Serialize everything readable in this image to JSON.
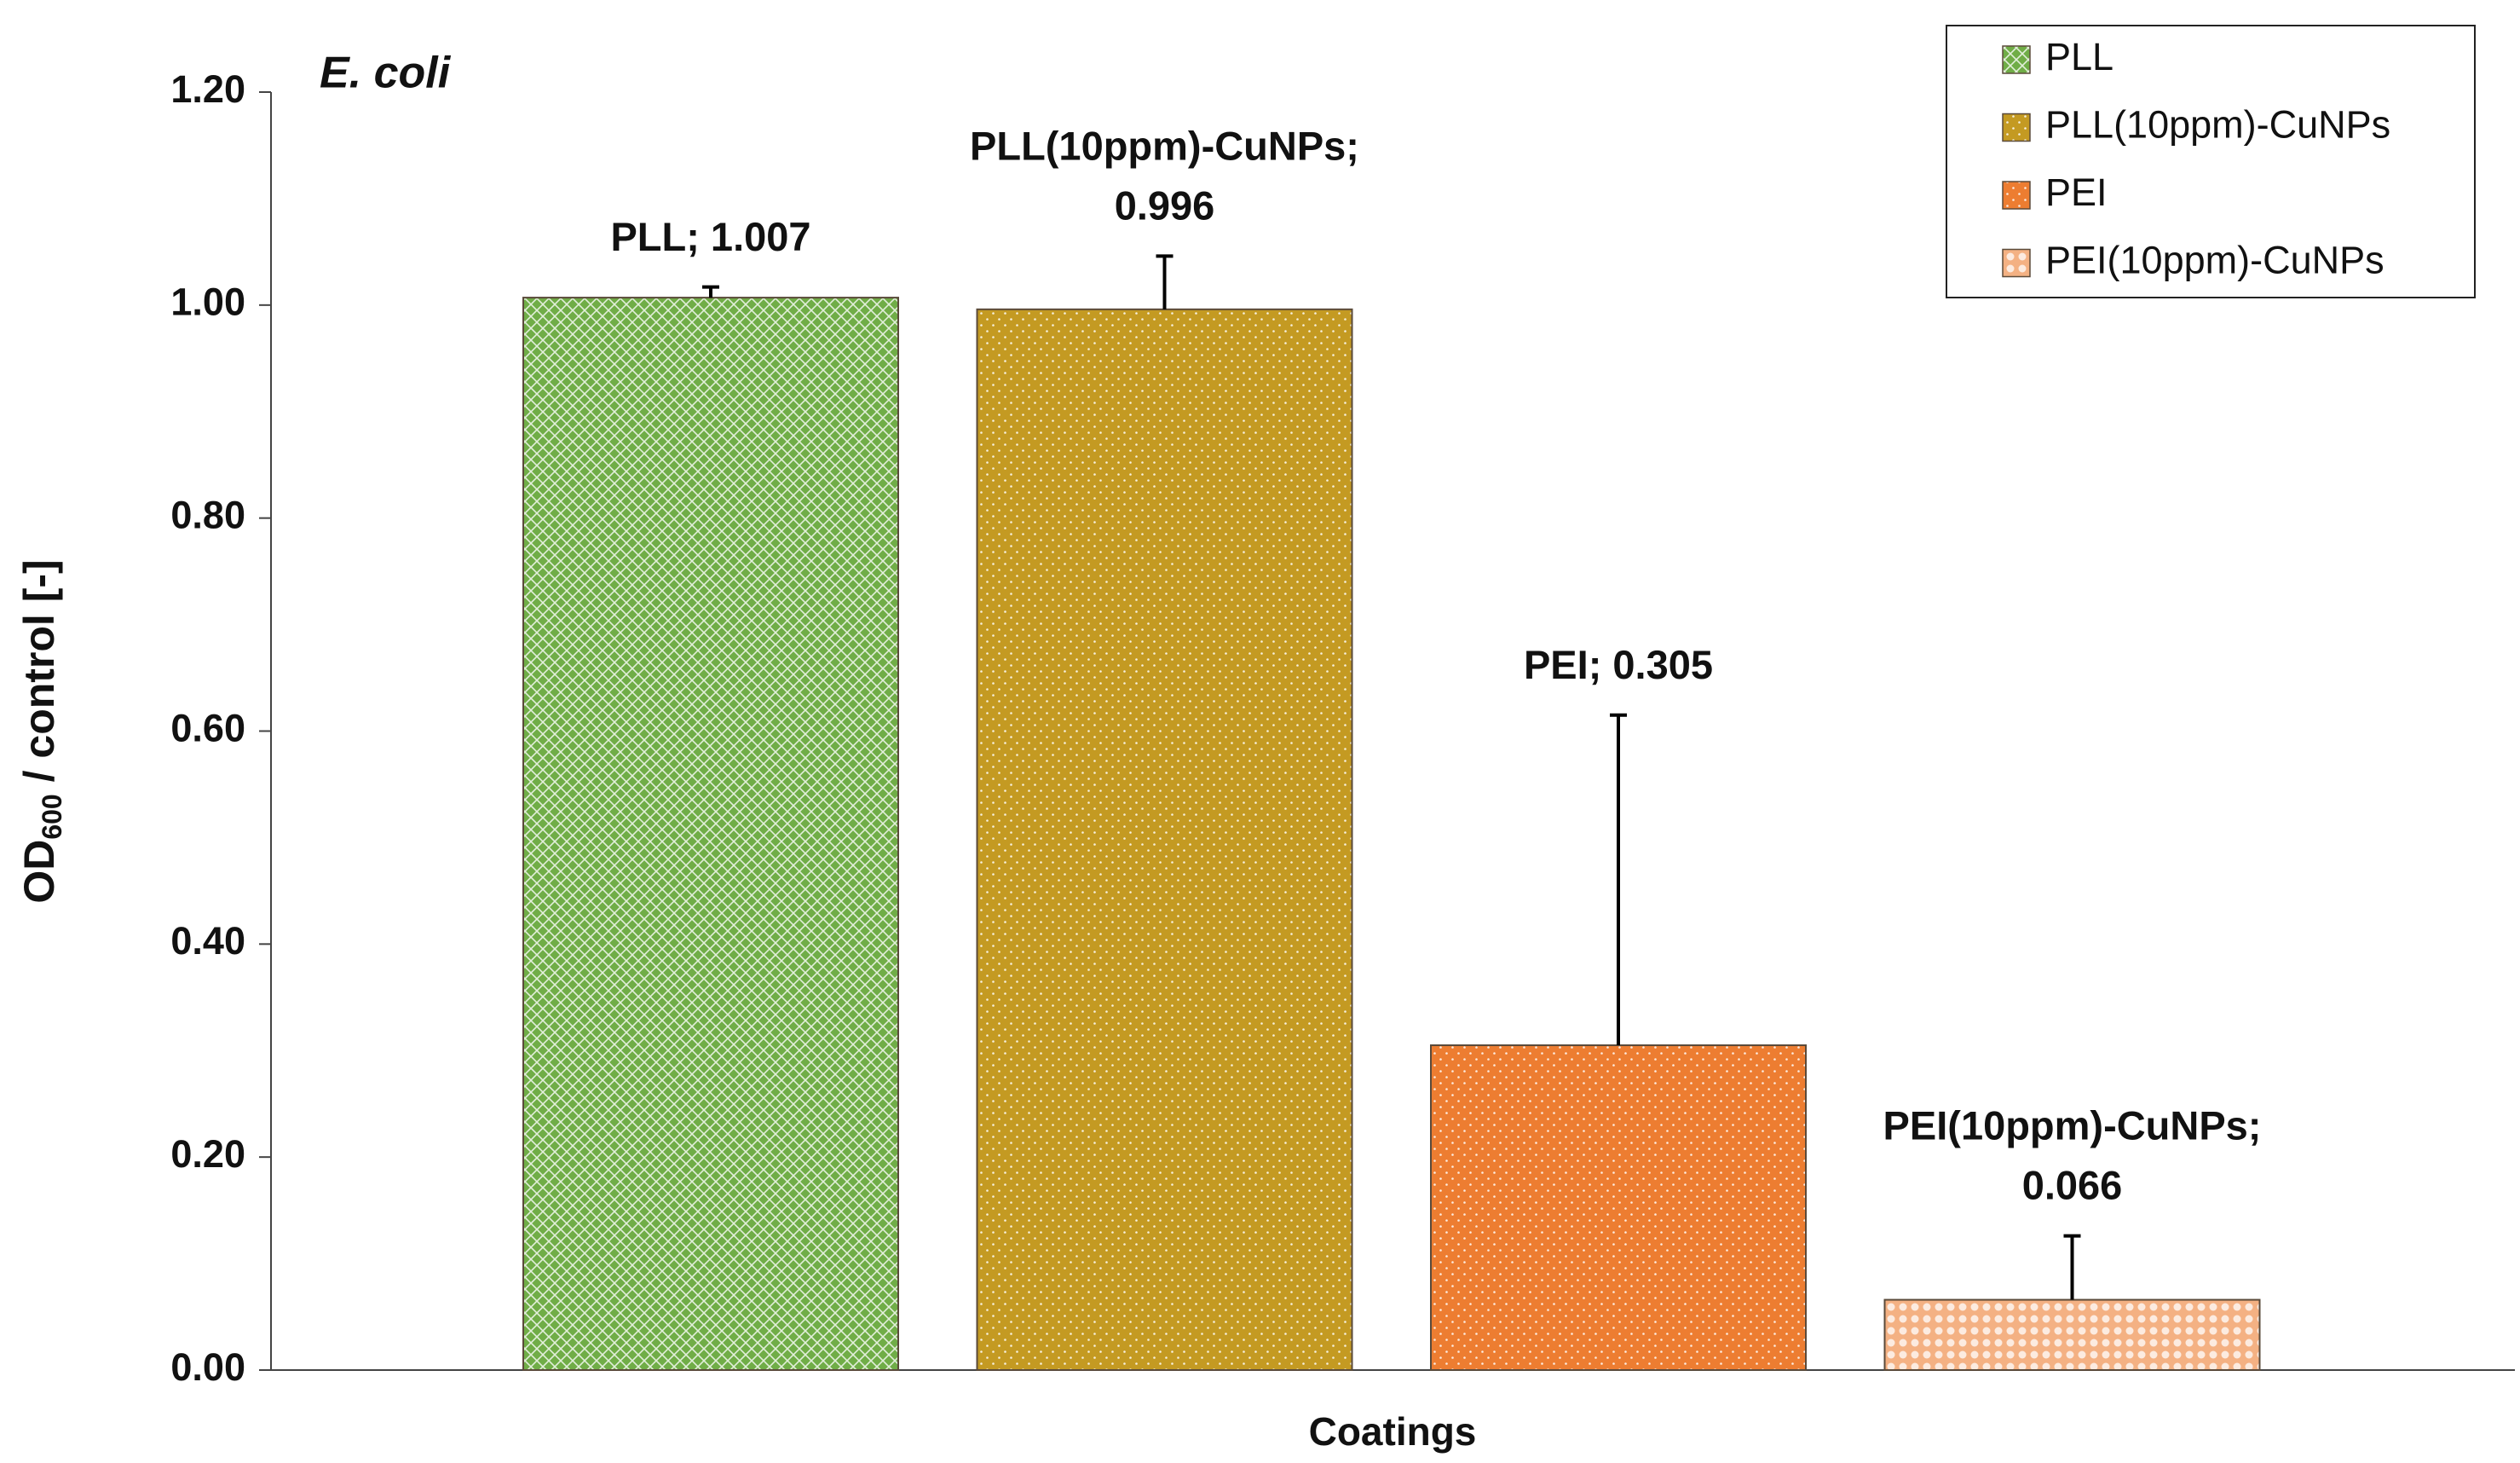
{
  "chart_data": {
    "type": "bar",
    "title": "E. coli",
    "ylabel_parts": [
      "OD",
      "600",
      " / control [-]"
    ],
    "xlabel": "Coatings",
    "ylim": [
      0,
      1.2
    ],
    "yticks": [
      {
        "value": 0,
        "label": "0.00"
      },
      {
        "value": 0.2,
        "label": "0.20"
      },
      {
        "value": 0.4,
        "label": "0.40"
      },
      {
        "value": 0.6,
        "label": "0.60"
      },
      {
        "value": 0.8,
        "label": "0.80"
      },
      {
        "value": 1.0,
        "label": "1.00"
      },
      {
        "value": 1.2,
        "label": "1.20"
      }
    ],
    "legend": "top-right",
    "series": [
      {
        "name": "PLL",
        "color": "#70ad47",
        "pattern": "crosshatch",
        "values": [
          1.007
        ],
        "errors": [
          0.01
        ],
        "value_labels": [
          "PLL; 1.007"
        ]
      },
      {
        "name": "PLL(10ppm)-CuNPs",
        "color": "#c49a22",
        "pattern": "dots",
        "values": [
          0.996
        ],
        "errors": [
          0.05
        ],
        "value_labels": [
          "PLL(10ppm)-CuNPs; 0.996"
        ]
      },
      {
        "name": "PEI",
        "color": "#ed7d31",
        "pattern": "dots",
        "values": [
          0.305
        ],
        "errors": [
          0.31
        ],
        "value_labels": [
          "PEI; 0.305"
        ]
      },
      {
        "name": "PEI(10ppm)-CuNPs",
        "color": "#f4b183",
        "pattern": "circles",
        "values": [
          0.066
        ],
        "errors": [
          0.06
        ],
        "value_labels": [
          "PEI(10ppm)-CuNPs; 0.066"
        ]
      }
    ]
  }
}
